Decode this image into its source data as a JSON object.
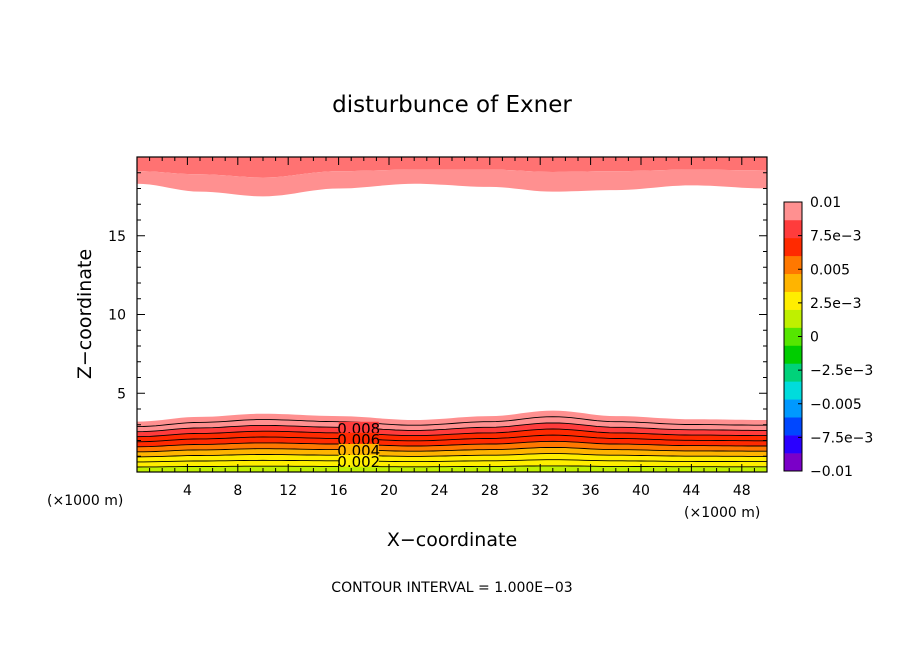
{
  "chart_data": {
    "type": "contour",
    "title": "disturbunce of Exner",
    "xlabel": "X−coordinate",
    "ylabel": "Z−coordinate",
    "x_unit_left": "(×1000 m)",
    "x_unit_right": "(×1000 m)",
    "xlim": [
      0,
      50
    ],
    "ylim": [
      0,
      20
    ],
    "x_ticks": [
      4,
      8,
      12,
      16,
      20,
      24,
      28,
      32,
      36,
      40,
      44,
      48
    ],
    "x_tick_labels": [
      "4",
      "8",
      "12",
      "16",
      "20",
      "24",
      "28",
      "32",
      "36",
      "40",
      "44",
      "48"
    ],
    "y_ticks": [
      5,
      10,
      15
    ],
    "y_tick_labels": [
      "5",
      "10",
      "15"
    ],
    "contour_interval_text": "CONTOUR INTERVAL = 1.000E−03",
    "contour_labels": [
      "0.008",
      "0.006",
      "0.004",
      "0.002"
    ],
    "colorbar": {
      "range": [
        -0.01,
        0.01
      ],
      "tick_values": [
        0.01,
        0.0075,
        0.005,
        0.0025,
        0,
        -0.0025,
        -0.005,
        -0.0075,
        -0.01
      ],
      "tick_labels": [
        "0.01",
        "7.5e−3",
        "0.005",
        "2.5e−3",
        "0",
        "−2.5e−3",
        "−0.005",
        "−7.5e−3",
        "−0.01"
      ],
      "level_colors": [
        "#7a00c8",
        "#2a00ff",
        "#0047ff",
        "#0099ff",
        "#00dcdc",
        "#00d27a",
        "#00cd00",
        "#55e600",
        "#bff000",
        "#ffee00",
        "#ffb400",
        "#ff7800",
        "#ff2a00",
        "#ff3c3c",
        "#ff9090"
      ]
    },
    "lower_band": {
      "x": [
        0,
        5,
        10,
        16,
        22,
        28,
        33,
        38,
        44,
        50
      ],
      "top_level_height": [
        3.2,
        3.5,
        3.7,
        3.55,
        3.3,
        3.55,
        3.9,
        3.55,
        3.35,
        3.3
      ],
      "levels": [
        0.01,
        0.009,
        0.008,
        0.007,
        0.006,
        0.005,
        0.004,
        0.003,
        0.002,
        0.001
      ]
    },
    "upper_band": {
      "x": [
        0,
        5,
        10,
        16,
        22,
        28,
        33,
        38,
        44,
        50
      ],
      "inner_boundary_height": [
        18.3,
        17.8,
        17.5,
        18.0,
        18.3,
        18.1,
        17.8,
        17.9,
        18.2,
        18.0
      ],
      "outer_boundary_height": [
        19.1,
        18.9,
        18.7,
        19.1,
        19.2,
        19.2,
        19.05,
        19.1,
        19.2,
        19.15
      ],
      "inner_color": "#ff9090",
      "outer_color": "#ff7272"
    }
  }
}
